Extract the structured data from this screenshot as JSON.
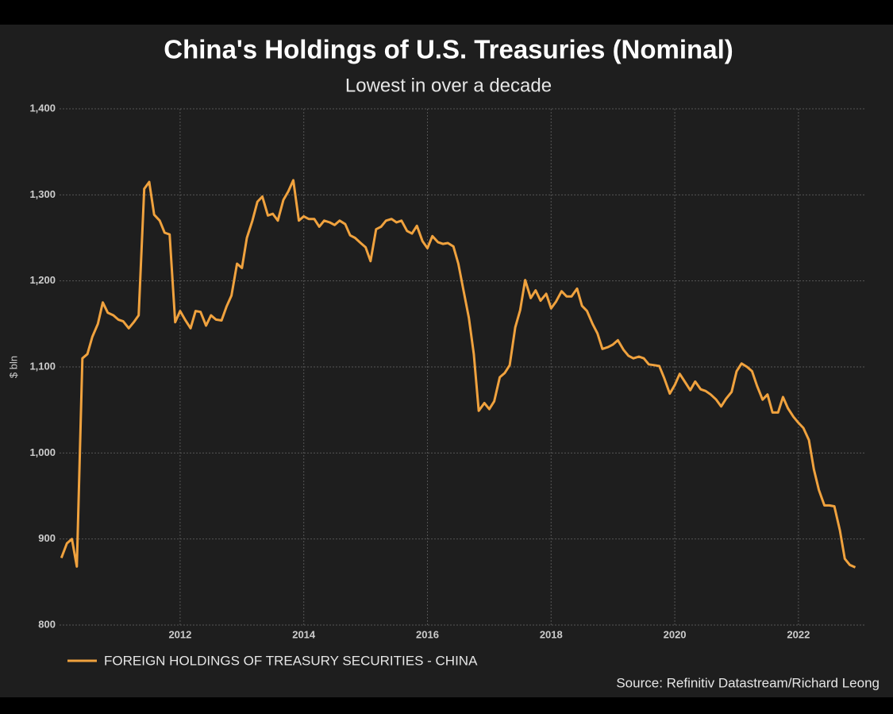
{
  "chart_data": {
    "type": "line",
    "title": "China's Holdings of U.S. Treasuries (Nominal)",
    "subtitle": "Lowest in over a decade",
    "y_label": "$ bln",
    "source": "Source: Refinitiv Datastream/Richard Leong",
    "grid": true,
    "legend": "bottom left",
    "xlim": [
      2010.05,
      2023.08
    ],
    "xticks": [
      2012,
      2014,
      2016,
      2018,
      2020,
      2022
    ],
    "ylim": [
      800,
      1400
    ],
    "yticks": [
      800,
      900,
      {
        "value": 1000,
        "label": "1,000"
      },
      {
        "value": 1100,
        "label": "1,100"
      },
      {
        "value": 1200,
        "label": "1,200"
      },
      {
        "value": 1300,
        "label": "1,300"
      },
      {
        "value": 1400,
        "label": "1,400"
      }
    ],
    "x": [
      2010.08,
      2010.17,
      2010.25,
      2010.33,
      2010.42,
      2010.5,
      2010.58,
      2010.67,
      2010.75,
      2010.83,
      2010.92,
      2011,
      2011.08,
      2011.17,
      2011.25,
      2011.33,
      2011.42,
      2011.5,
      2011.58,
      2011.67,
      2011.75,
      2011.83,
      2011.92,
      2012,
      2012.08,
      2012.17,
      2012.25,
      2012.33,
      2012.42,
      2012.5,
      2012.58,
      2012.67,
      2012.75,
      2012.83,
      2012.92,
      2013,
      2013.08,
      2013.17,
      2013.25,
      2013.33,
      2013.42,
      2013.5,
      2013.58,
      2013.67,
      2013.75,
      2013.83,
      2013.92,
      2014,
      2014.08,
      2014.17,
      2014.25,
      2014.33,
      2014.42,
      2014.5,
      2014.58,
      2014.67,
      2014.75,
      2014.83,
      2014.92,
      2015,
      2015.08,
      2015.17,
      2015.25,
      2015.33,
      2015.42,
      2015.5,
      2015.58,
      2015.67,
      2015.75,
      2015.83,
      2015.92,
      2016,
      2016.08,
      2016.17,
      2016.25,
      2016.33,
      2016.42,
      2016.5,
      2016.58,
      2016.67,
      2016.75,
      2016.83,
      2016.92,
      2017,
      2017.08,
      2017.17,
      2017.25,
      2017.33,
      2017.42,
      2017.5,
      2017.58,
      2017.67,
      2017.75,
      2017.83,
      2017.92,
      2018,
      2018.08,
      2018.17,
      2018.25,
      2018.33,
      2018.42,
      2018.5,
      2018.58,
      2018.67,
      2018.75,
      2018.83,
      2018.92,
      2019,
      2019.08,
      2019.17,
      2019.25,
      2019.33,
      2019.42,
      2019.5,
      2019.58,
      2019.67,
      2019.75,
      2019.83,
      2019.92,
      2020,
      2020.08,
      2020.17,
      2020.25,
      2020.33,
      2020.42,
      2020.5,
      2020.58,
      2020.67,
      2020.75,
      2020.83,
      2020.92,
      2021,
      2021.08,
      2021.17,
      2021.25,
      2021.33,
      2021.42,
      2021.5,
      2021.58,
      2021.67,
      2021.75,
      2021.83,
      2021.92,
      2022,
      2022.08,
      2022.17,
      2022.25,
      2022.33,
      2022.42,
      2022.5,
      2022.58,
      2022.67,
      2022.75,
      2022.83,
      2022.92
    ],
    "series": [
      {
        "name": "FOREIGN HOLDINGS OF TREASURY SECURITIES - CHINA",
        "color": "#f0a23e",
        "values": [
          878,
          895,
          900,
          868,
          1110,
          1115,
          1135,
          1150,
          1175,
          1163,
          1160,
          1155,
          1153,
          1145,
          1152,
          1160,
          1307,
          1315,
          1277,
          1270,
          1256,
          1254,
          1152,
          1165,
          1155,
          1145,
          1165,
          1164,
          1148,
          1160,
          1155,
          1154,
          1170,
          1183,
          1220,
          1215,
          1250,
          1270,
          1292,
          1298,
          1276,
          1278,
          1270,
          1294,
          1304,
          1317,
          1270,
          1275,
          1272,
          1272,
          1263,
          1270,
          1268,
          1265,
          1270,
          1266,
          1253,
          1250,
          1244,
          1239,
          1223,
          1260,
          1263,
          1270,
          1272,
          1268,
          1270,
          1258,
          1255,
          1264,
          1246,
          1238,
          1252,
          1245,
          1243,
          1244,
          1240,
          1220,
          1190,
          1157,
          1115,
          1049,
          1058,
          1051,
          1060,
          1088,
          1093,
          1102,
          1146,
          1166,
          1201,
          1180,
          1189,
          1177,
          1185,
          1168,
          1176,
          1188,
          1182,
          1182,
          1191,
          1171,
          1165,
          1150,
          1139,
          1121,
          1123,
          1126,
          1131,
          1120,
          1113,
          1110,
          1112,
          1110,
          1103,
          1102,
          1101,
          1087,
          1069,
          1079,
          1092,
          1082,
          1073,
          1083,
          1074,
          1072,
          1068,
          1062,
          1054,
          1063,
          1071,
          1095,
          1104,
          1100,
          1095,
          1078,
          1062,
          1068,
          1047,
          1047,
          1065,
          1052,
          1042,
          1035,
          1029,
          1015,
          981,
          957,
          939,
          939,
          938,
          910,
          877,
          870,
          867
        ]
      }
    ]
  }
}
